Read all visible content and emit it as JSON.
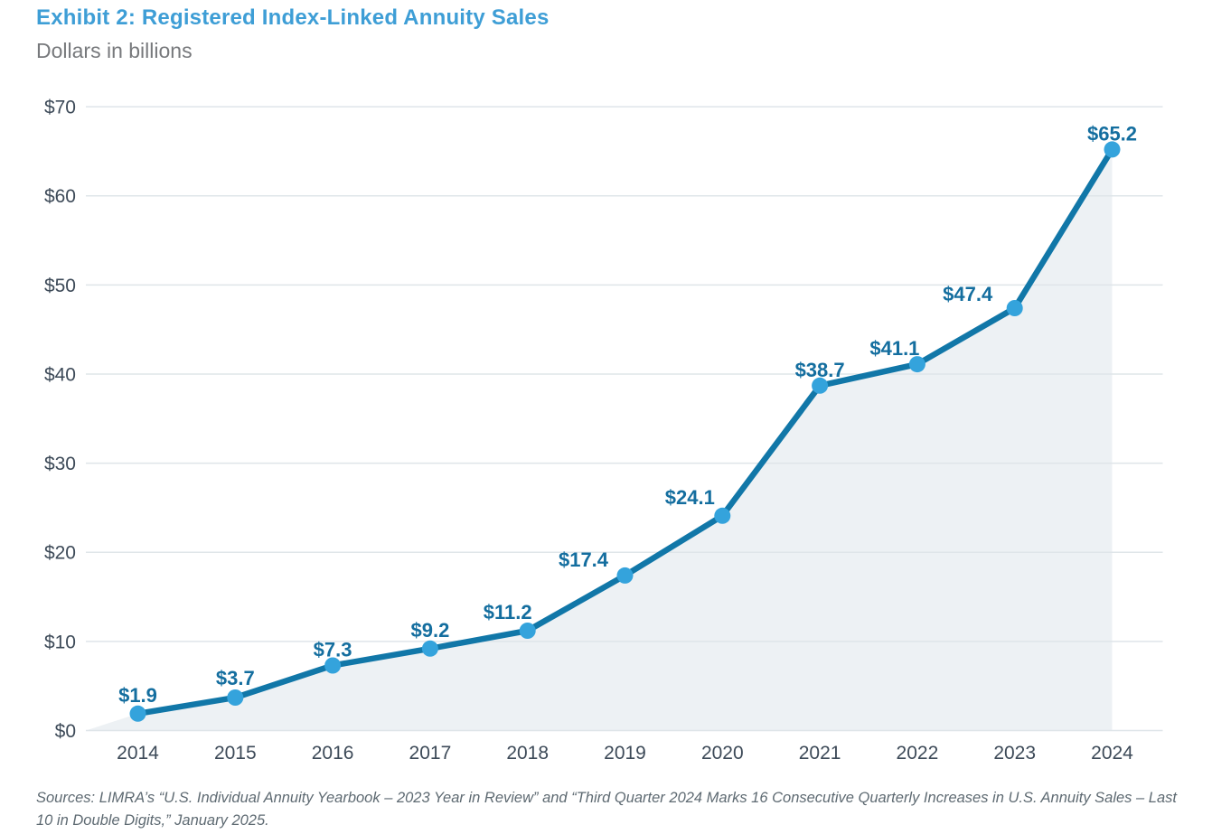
{
  "header": {
    "title": "Exhibit 2: Registered Index-Linked Annuity Sales",
    "subtitle": "Dollars in billions"
  },
  "chart_data": {
    "type": "line",
    "title": "Exhibit 2: Registered Index-Linked Annuity Sales",
    "subtitle": "Dollars in billions",
    "categories": [
      "2014",
      "2015",
      "2016",
      "2017",
      "2018",
      "2019",
      "2020",
      "2021",
      "2022",
      "2023",
      "2024"
    ],
    "values": [
      1.9,
      3.7,
      7.3,
      9.2,
      11.2,
      17.4,
      24.1,
      38.7,
      41.1,
      47.4,
      65.2
    ],
    "point_labels": [
      "$1.9",
      "$3.7",
      "$7.3",
      "$9.2",
      "$11.2",
      "$17.4",
      "$24.1",
      "$38.7",
      "$41.1",
      "$47.4",
      "$65.2"
    ],
    "series_name": "Registered index-linked annuity sales (dollars in billions)",
    "xlabel": "",
    "ylabel": "Dollars in billions",
    "ylim": [
      0,
      70
    ],
    "ytick_step": 10,
    "ytick_labels": [
      "$0",
      "$10",
      "$20",
      "$30",
      "$40",
      "$50",
      "$60",
      "$70"
    ],
    "grid": true,
    "legend": false,
    "area_fill": true,
    "colors": {
      "line": "#1177a8",
      "marker": "#34a3dc",
      "label": "#146e9f",
      "fill": "#edf1f4",
      "grid": "#dfe5e9",
      "axis_text": "#3d4a58",
      "title": "#3e9ed6",
      "subtitle": "#77797c",
      "source": "#5e6a72"
    }
  },
  "footer": {
    "source": "Sources: LIMRA’s “U.S. Individual Annuity Yearbook – 2023 Year in Review” and “Third Quarter 2024 Marks 16 Consecutive Quarterly Increases in U.S. Annuity Sales – Last 10 in Double Digits,” January 2025."
  }
}
